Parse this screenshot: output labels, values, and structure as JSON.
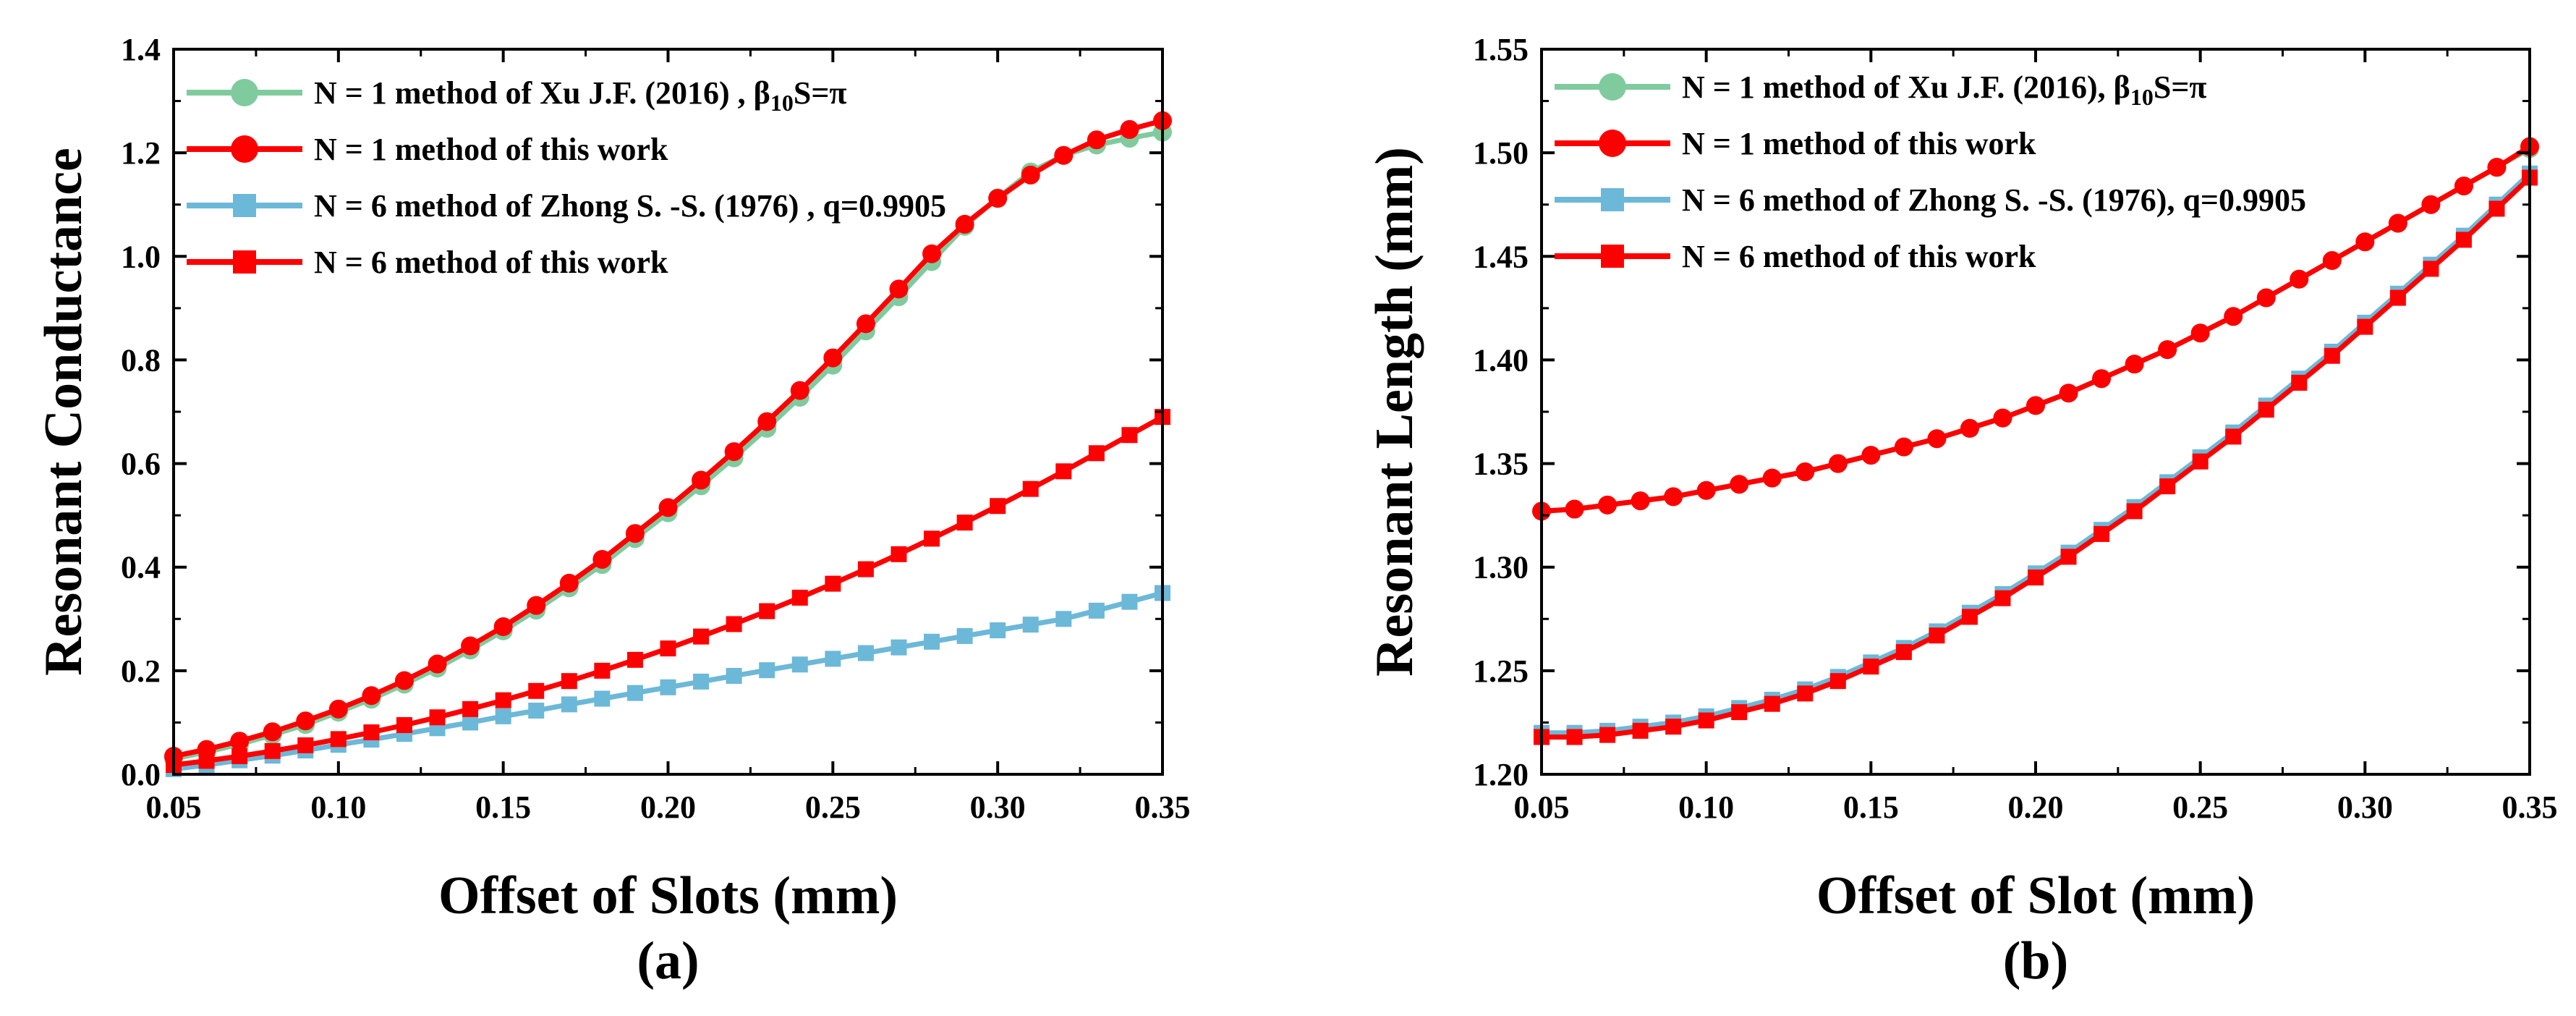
{
  "chart_data": [
    {
      "type": "line",
      "panel_label": "(a)",
      "xlabel": "Offset of Slots (mm)",
      "ylabel": "Resonant Conductance",
      "xlim": [
        0.05,
        0.35
      ],
      "ylim": [
        0.0,
        1.4
      ],
      "xticks": [
        "0.05",
        "0.10",
        "0.15",
        "0.20",
        "0.25",
        "0.30",
        "0.35"
      ],
      "yticks": [
        "0.0",
        "0.2",
        "0.4",
        "0.6",
        "0.8",
        "1.0",
        "1.2",
        "1.4"
      ],
      "grid": false,
      "legend_position": "top-left",
      "x": [
        0.05,
        0.06,
        0.07,
        0.08,
        0.09,
        0.1,
        0.11,
        0.12,
        0.13,
        0.14,
        0.15,
        0.16,
        0.17,
        0.18,
        0.19,
        0.2,
        0.21,
        0.22,
        0.23,
        0.24,
        0.25,
        0.26,
        0.27,
        0.28,
        0.29,
        0.3,
        0.31,
        0.32,
        0.33,
        0.34,
        0.35
      ],
      "series": [
        {
          "name": "N = 1 method of Xu J.F. (2016) , β10S=π",
          "name_main": "N = 1 method of Xu J.F. (2016) , β",
          "name_sub": "10",
          "name_tail": "S=π",
          "color": "#7fcb9e",
          "marker": "circle",
          "values": [
            0.03,
            0.043,
            0.058,
            0.076,
            0.096,
            0.12,
            0.145,
            0.174,
            0.205,
            0.24,
            0.277,
            0.317,
            0.36,
            0.405,
            0.455,
            0.505,
            0.557,
            0.611,
            0.668,
            0.728,
            0.79,
            0.856,
            0.922,
            0.99,
            1.058,
            1.113,
            1.163,
            1.195,
            1.215,
            1.228,
            1.24
          ]
        },
        {
          "name": "N = 1 method of this work",
          "color": "#ff0000",
          "marker": "circle",
          "values": [
            0.035,
            0.048,
            0.064,
            0.082,
            0.103,
            0.126,
            0.152,
            0.181,
            0.213,
            0.248,
            0.285,
            0.326,
            0.369,
            0.415,
            0.465,
            0.515,
            0.568,
            0.623,
            0.681,
            0.741,
            0.804,
            0.87,
            0.937,
            1.005,
            1.062,
            1.112,
            1.157,
            1.195,
            1.225,
            1.245,
            1.262
          ]
        },
        {
          "name": "N = 6 method of Zhong S. -S. (1976) , q=0.9905",
          "color": "#6cb8d8",
          "marker": "square",
          "values": [
            0.01,
            0.018,
            0.027,
            0.036,
            0.046,
            0.057,
            0.067,
            0.078,
            0.089,
            0.1,
            0.112,
            0.123,
            0.135,
            0.146,
            0.157,
            0.168,
            0.179,
            0.19,
            0.201,
            0.212,
            0.223,
            0.234,
            0.245,
            0.256,
            0.267,
            0.278,
            0.289,
            0.3,
            0.316,
            0.333,
            0.35
          ]
        },
        {
          "name": "N = 6 method of this work",
          "color": "#ff0000",
          "marker": "square",
          "values": [
            0.018,
            0.026,
            0.035,
            0.045,
            0.056,
            0.068,
            0.081,
            0.095,
            0.11,
            0.126,
            0.143,
            0.161,
            0.18,
            0.2,
            0.221,
            0.243,
            0.266,
            0.29,
            0.315,
            0.341,
            0.368,
            0.396,
            0.425,
            0.455,
            0.486,
            0.518,
            0.551,
            0.585,
            0.62,
            0.655,
            0.69
          ]
        }
      ]
    },
    {
      "type": "line",
      "panel_label": "(b)",
      "xlabel": "Offset of Slot (mm)",
      "ylabel": "Resonant Length (mm)",
      "xlim": [
        0.05,
        0.35
      ],
      "ylim": [
        1.2,
        1.55
      ],
      "xticks": [
        "0.05",
        "0.10",
        "0.15",
        "0.20",
        "0.25",
        "0.30",
        "0.35"
      ],
      "yticks": [
        "1.20",
        "1.25",
        "1.30",
        "1.35",
        "1.40",
        "1.45",
        "1.50",
        "1.55"
      ],
      "grid": false,
      "legend_position": "top-left",
      "x": [
        0.05,
        0.06,
        0.07,
        0.08,
        0.09,
        0.1,
        0.11,
        0.12,
        0.13,
        0.14,
        0.15,
        0.16,
        0.17,
        0.18,
        0.19,
        0.2,
        0.21,
        0.22,
        0.23,
        0.24,
        0.25,
        0.26,
        0.27,
        0.28,
        0.29,
        0.3,
        0.31,
        0.32,
        0.33,
        0.34,
        0.35
      ],
      "series": [
        {
          "name": "N = 1 method of Xu J.F. (2016), β10S=π",
          "name_main": "N = 1 method of Xu J.F. (2016), β",
          "name_sub": "10",
          "name_tail": "S=π",
          "color": "#7fcb9e",
          "marker": "circle",
          "values": [
            1.327,
            1.328,
            1.33,
            1.332,
            1.334,
            1.337,
            1.34,
            1.343,
            1.346,
            1.35,
            1.354,
            1.358,
            1.362,
            1.367,
            1.372,
            1.378,
            1.384,
            1.391,
            1.398,
            1.405,
            1.413,
            1.421,
            1.43,
            1.439,
            1.448,
            1.457,
            1.466,
            1.475,
            1.484,
            1.493,
            1.502
          ]
        },
        {
          "name": "N = 1 method of this work",
          "color": "#ff0000",
          "marker": "circle",
          "values": [
            1.327,
            1.328,
            1.33,
            1.332,
            1.334,
            1.337,
            1.34,
            1.343,
            1.346,
            1.35,
            1.354,
            1.358,
            1.362,
            1.367,
            1.372,
            1.378,
            1.384,
            1.391,
            1.398,
            1.405,
            1.413,
            1.421,
            1.43,
            1.439,
            1.448,
            1.457,
            1.466,
            1.475,
            1.484,
            1.493,
            1.503
          ]
        },
        {
          "name": "N = 6 method of Zhong S. -S. (1976), q=0.9905",
          "color": "#6cb8d8",
          "marker": "square",
          "values": [
            1.22,
            1.22,
            1.221,
            1.223,
            1.225,
            1.228,
            1.232,
            1.236,
            1.241,
            1.247,
            1.254,
            1.261,
            1.269,
            1.278,
            1.287,
            1.297,
            1.307,
            1.318,
            1.329,
            1.341,
            1.353,
            1.365,
            1.378,
            1.391,
            1.404,
            1.418,
            1.432,
            1.446,
            1.46,
            1.475,
            1.49
          ]
        },
        {
          "name": "N = 6 method of this work",
          "color": "#ff0000",
          "marker": "square",
          "values": [
            1.218,
            1.218,
            1.219,
            1.221,
            1.223,
            1.226,
            1.23,
            1.234,
            1.239,
            1.245,
            1.252,
            1.259,
            1.267,
            1.276,
            1.285,
            1.295,
            1.305,
            1.316,
            1.327,
            1.339,
            1.351,
            1.363,
            1.376,
            1.389,
            1.402,
            1.416,
            1.43,
            1.444,
            1.458,
            1.473,
            1.488
          ]
        }
      ]
    }
  ]
}
